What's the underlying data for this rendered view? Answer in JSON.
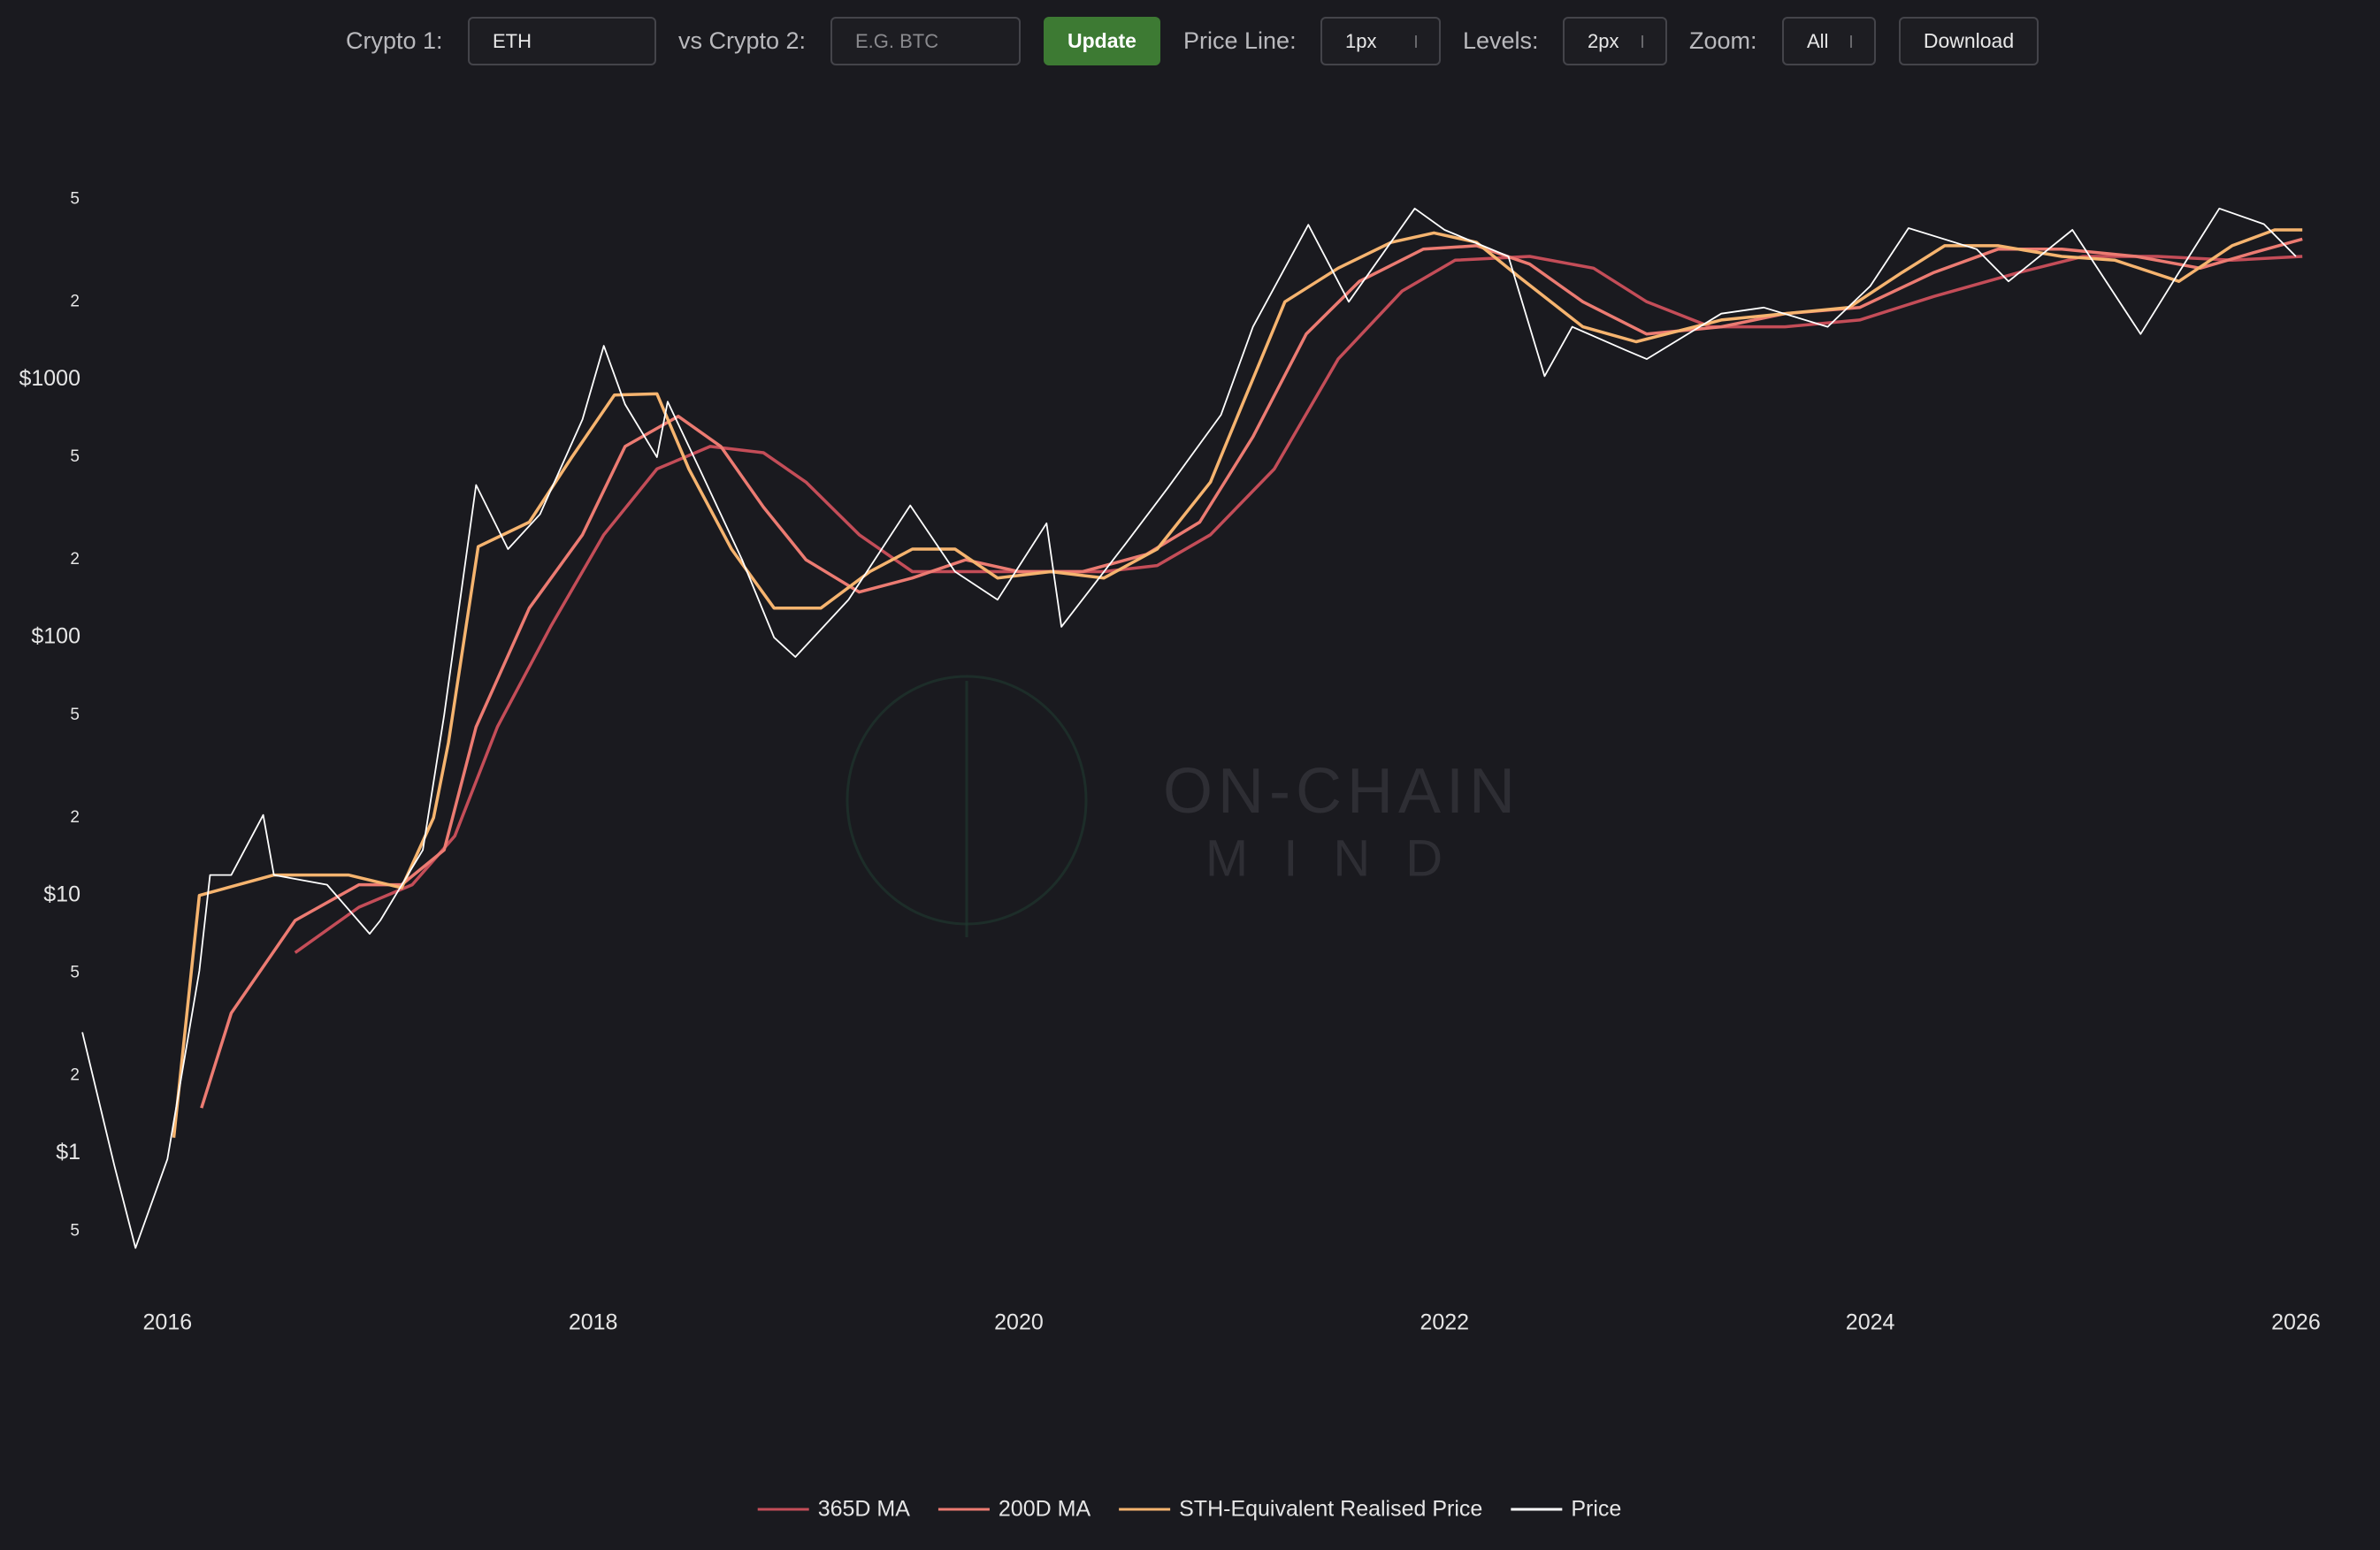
{
  "toolbar": {
    "crypto1_label": "Crypto 1:",
    "crypto1_value": "ETH",
    "crypto2_label": "vs Crypto 2:",
    "crypto2_placeholder": "E.G. BTC",
    "update": "Update",
    "price_line_label": "Price Line:",
    "price_line_value": "1px",
    "levels_label": "Levels:",
    "levels_value": "2px",
    "zoom_label": "Zoom:",
    "zoom_value": "All",
    "download": "Download"
  },
  "watermark": {
    "line1": "ON-CHAIN",
    "line2": "MIND"
  },
  "chart_data": {
    "type": "line",
    "yscale": "log",
    "xlim": [
      2015.5,
      2026.1
    ],
    "xticks": [
      2016,
      2018,
      2020,
      2022,
      2024,
      2026
    ],
    "ylim": [
      0.3,
      6500
    ],
    "yticks": [
      {
        "value": 0.5,
        "label": "5"
      },
      {
        "value": 1,
        "label": "$1"
      },
      2,
      5,
      {
        "value": 10,
        "label": "$10"
      },
      {
        "value": 20,
        "label": "2"
      },
      {
        "value": 50,
        "label": "5"
      },
      {
        "value": 100,
        "label": "$100"
      },
      {
        "value": 200,
        "label": "2"
      },
      {
        "value": 500,
        "label": "5"
      },
      {
        "value": 1000,
        "label": "$1000"
      },
      {
        "value": 2000,
        "label": "2"
      },
      {
        "value": 5000,
        "label": "5"
      }
    ],
    "grid": false,
    "series": [
      {
        "name": "365D MA",
        "color": "#c44d58",
        "x": [
          2016.6,
          2016.9,
          2017.15,
          2017.35,
          2017.55,
          2017.8,
          2018.05,
          2018.3,
          2018.55,
          2018.8,
          2019.0,
          2019.25,
          2019.5,
          2019.8,
          2020.1,
          2020.4,
          2020.65,
          2020.9,
          2021.2,
          2021.5,
          2021.8,
          2022.05,
          2022.4,
          2022.7,
          2022.95,
          2023.25,
          2023.6,
          2023.95,
          2024.3,
          2024.7,
          2025.0,
          2025.35,
          2025.7,
          2026.03
        ],
        "values": [
          6,
          9,
          11,
          17,
          45,
          110,
          250,
          450,
          550,
          520,
          400,
          250,
          180,
          180,
          180,
          180,
          190,
          250,
          450,
          1200,
          2200,
          2900,
          3000,
          2700,
          2000,
          1600,
          1600,
          1700,
          2100,
          2600,
          3000,
          3000,
          2900,
          3000
        ]
      },
      {
        "name": "200D MA",
        "color": "#ec7b72",
        "x": [
          2016.16,
          2016.3,
          2016.6,
          2016.9,
          2017.1,
          2017.3,
          2017.45,
          2017.7,
          2017.95,
          2018.15,
          2018.4,
          2018.6,
          2018.8,
          2019.0,
          2019.25,
          2019.5,
          2019.75,
          2020.0,
          2020.3,
          2020.6,
          2020.85,
          2021.1,
          2021.35,
          2021.6,
          2021.9,
          2022.15,
          2022.4,
          2022.65,
          2022.95,
          2023.3,
          2023.6,
          2023.95,
          2024.3,
          2024.6,
          2024.9,
          2025.25,
          2025.55,
          2025.8,
          2026.03
        ],
        "values": [
          1.5,
          3.5,
          8,
          11,
          11,
          15,
          45,
          130,
          250,
          550,
          720,
          550,
          320,
          200,
          150,
          170,
          200,
          180,
          180,
          210,
          280,
          600,
          1500,
          2400,
          3200,
          3300,
          2800,
          2000,
          1500,
          1600,
          1800,
          1900,
          2600,
          3200,
          3200,
          3000,
          2700,
          3100,
          3500
        ]
      },
      {
        "name": "STH-Equivalent Realised Price",
        "color": "#f6b46f",
        "x": [
          2016.03,
          2016.15,
          2016.5,
          2016.85,
          2017.1,
          2017.25,
          2017.32,
          2017.46,
          2017.7,
          2017.9,
          2018.1,
          2018.3,
          2018.45,
          2018.65,
          2018.85,
          2019.07,
          2019.3,
          2019.5,
          2019.7,
          2019.9,
          2020.15,
          2020.4,
          2020.65,
          2020.9,
          2021.05,
          2021.25,
          2021.5,
          2021.75,
          2021.95,
          2022.15,
          2022.35,
          2022.65,
          2022.9,
          2023.3,
          2023.6,
          2023.9,
          2024.15,
          2024.35,
          2024.6,
          2024.9,
          2025.15,
          2025.45,
          2025.7,
          2025.9,
          2026.03
        ],
        "values": [
          1.15,
          10,
          12,
          12,
          10.7,
          20,
          39,
          225,
          280,
          500,
          870,
          880,
          450,
          220,
          130,
          130,
          180,
          220,
          220,
          170,
          180,
          170,
          220,
          400,
          800,
          2000,
          2700,
          3400,
          3700,
          3400,
          2500,
          1600,
          1400,
          1700,
          1800,
          1900,
          2600,
          3300,
          3300,
          3000,
          2900,
          2400,
          3300,
          3800,
          3800
        ]
      },
      {
        "name": "Price",
        "color": "#ffffff",
        "x": [
          2015.6,
          2015.75,
          2015.85,
          2016.0,
          2016.15,
          2016.2,
          2016.3,
          2016.45,
          2016.5,
          2016.75,
          2016.95,
          2017.0,
          2017.2,
          2017.3,
          2017.45,
          2017.6,
          2017.75,
          2017.95,
          2018.05,
          2018.15,
          2018.3,
          2018.35,
          2018.5,
          2018.7,
          2018.85,
          2018.95,
          2019.2,
          2019.49,
          2019.7,
          2019.9,
          2020.13,
          2020.2,
          2020.5,
          2020.7,
          2020.95,
          2021.1,
          2021.36,
          2021.55,
          2021.86,
          2022.0,
          2022.3,
          2022.47,
          2022.6,
          2022.85,
          2022.95,
          2023.3,
          2023.5,
          2023.8,
          2024.0,
          2024.18,
          2024.5,
          2024.65,
          2024.95,
          2025.27,
          2025.45,
          2025.64,
          2025.85,
          2026.0
        ],
        "values": [
          2.95,
          0.9,
          0.43,
          0.95,
          5.1,
          12,
          12,
          20.5,
          12,
          11,
          7.1,
          8,
          15,
          50,
          390,
          220,
          300,
          700,
          1350,
          800,
          500,
          820,
          450,
          200,
          100,
          84,
          140,
          325,
          180,
          140,
          277,
          110,
          230,
          380,
          730,
          1600,
          3980,
          2000,
          4600,
          3800,
          3000,
          1030,
          1600,
          1300,
          1200,
          1800,
          1900,
          1600,
          2300,
          3860,
          3200,
          2400,
          3800,
          1500,
          2600,
          4600,
          4000,
          3000
        ]
      }
    ]
  }
}
